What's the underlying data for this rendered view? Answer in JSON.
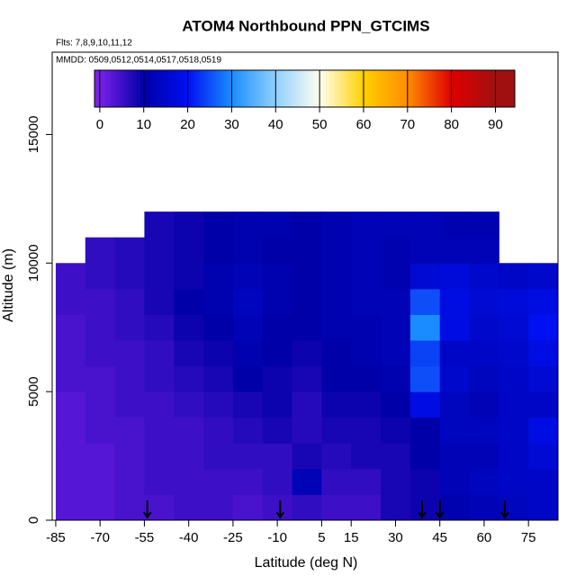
{
  "chart_data": {
    "type": "heatmap",
    "title": "ATOM4 Northbound PPN_GTCIMS",
    "subtitle": "Flts: 7,8,9,10,11,12",
    "annotation": "MMDD: 0509,0512,0514,0517,0518,0519",
    "x_label": "Latitude (deg N)",
    "y_label": "Altitude (m)",
    "xlim": [
      -86.2,
      85
    ],
    "ylim": [
      0,
      18200
    ],
    "xticks": [
      -85,
      -70,
      -55,
      -40,
      -25,
      -10,
      5,
      15,
      30,
      45,
      60,
      75
    ],
    "yticks": [
      0,
      5000,
      10000,
      15000
    ],
    "clim": [
      -1.2,
      94.4
    ],
    "cticks": [
      0,
      10,
      20,
      30,
      40,
      50,
      60,
      70,
      80,
      90
    ],
    "colorscale": [
      [
        0,
        "#7a20e8"
      ],
      [
        10,
        "#0000a8"
      ],
      [
        20,
        "#0010f0"
      ],
      [
        30,
        "#1a8cff"
      ],
      [
        40,
        "#8fd0ff"
      ],
      [
        50,
        "#fffff0"
      ],
      [
        60,
        "#ffd000"
      ],
      [
        70,
        "#ff8c00"
      ],
      [
        80,
        "#e00000"
      ],
      [
        90,
        "#a01010"
      ]
    ],
    "x_edges": [
      -85,
      -75,
      -65,
      -55,
      -45,
      -35,
      -25,
      -15,
      -5,
      5,
      15,
      25,
      35,
      45,
      55,
      65,
      75,
      85
    ],
    "y_edges": [
      0,
      1000,
      2000,
      3000,
      4000,
      5000,
      6000,
      7000,
      8000,
      9000,
      10000,
      11000,
      12000
    ],
    "z": [
      [
        3,
        3,
        4,
        4,
        5,
        5,
        4,
        5,
        6,
        5,
        5,
        8,
        9,
        11,
        12,
        13,
        14
      ],
      [
        3,
        3,
        4,
        5,
        5,
        5,
        5,
        6,
        12,
        6,
        6,
        8,
        9,
        12,
        13,
        14,
        14
      ],
      [
        3,
        3,
        4,
        5,
        5,
        6,
        6,
        6,
        8,
        7,
        8,
        8,
        10,
        12,
        12,
        14,
        16
      ],
      [
        3,
        4,
        4,
        5,
        5,
        6,
        7,
        8,
        7,
        8,
        8,
        9,
        10,
        13,
        13,
        14,
        18
      ],
      [
        3,
        4,
        5,
        5,
        6,
        7,
        8,
        9,
        7,
        9,
        9,
        10,
        18,
        13,
        12,
        14,
        14
      ],
      [
        4,
        4,
        5,
        6,
        7,
        8,
        10,
        9,
        8,
        10,
        10,
        11,
        25,
        15,
        13,
        14,
        16
      ],
      [
        4,
        5,
        5,
        6,
        8,
        9,
        11,
        10,
        9,
        10,
        11,
        12,
        24,
        14,
        14,
        15,
        18
      ],
      [
        4,
        5,
        6,
        7,
        9,
        10,
        12,
        10,
        10,
        11,
        11,
        12,
        30,
        18,
        15,
        16,
        20
      ],
      [
        5,
        5,
        6,
        8,
        10,
        11,
        13,
        11,
        10,
        11,
        12,
        12,
        25,
        18,
        16,
        17,
        18
      ],
      [
        5,
        6,
        7,
        8,
        9,
        11,
        12,
        11,
        10,
        11,
        12,
        11,
        16,
        17,
        15,
        14,
        15
      ],
      [
        null,
        6,
        7,
        8,
        9,
        10,
        11,
        10,
        10,
        11,
        12,
        11,
        12,
        12,
        12,
        null,
        null
      ],
      [
        null,
        null,
        null,
        8,
        9,
        10,
        11,
        11,
        10,
        11,
        12,
        12,
        12,
        11,
        11,
        null,
        null
      ]
    ],
    "arrows": [
      -54,
      -9,
      39,
      45,
      67
    ]
  }
}
